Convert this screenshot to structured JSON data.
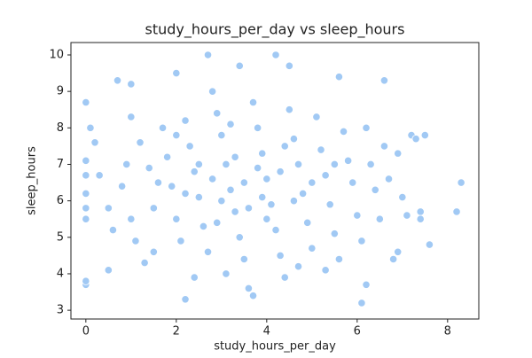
{
  "chart_data": {
    "type": "scatter",
    "title": "study_hours_per_day vs sleep_hours",
    "x_label": "study_hours_per_day",
    "y_label": "sleep_hours",
    "color": "#a1c9f4",
    "xlim": [
      -0.33,
      8.69
    ],
    "ylim": [
      2.76,
      10.34
    ],
    "xticks": [
      0,
      2,
      4,
      6,
      8
    ],
    "yticks": [
      3,
      4,
      5,
      6,
      7,
      8,
      9,
      10
    ],
    "x": [
      0,
      0,
      0,
      0.5,
      0.7,
      2.7,
      4.2,
      8.3,
      8.2,
      7.6,
      6.1,
      6.2,
      2.2,
      7.5,
      7.2,
      7.3,
      6.6,
      5.6,
      2.0,
      3.4,
      1.0,
      4.5,
      6.8,
      6.9,
      7.4,
      7.4,
      7.1,
      0.2,
      0.1,
      0,
      0,
      0,
      0,
      0,
      0.5,
      0.6,
      1.0,
      1.2,
      1.4,
      1.5,
      1.1,
      1.3,
      1.7,
      1.8,
      1.9,
      2.0,
      2.1,
      2.2,
      2.3,
      2.4,
      2.5,
      2.6,
      2.7,
      2.8,
      2.9,
      3.0,
      3.1,
      3.2,
      3.3,
      3.4,
      3.5,
      3.6,
      3.7,
      3.8,
      3.9,
      4.0,
      4.1,
      4.2,
      4.3,
      4.4,
      4.5,
      4.6,
      4.7,
      4.8,
      4.9,
      5.0,
      5.1,
      5.2,
      5.3,
      5.4,
      5.5,
      5.6,
      5.7,
      5.8,
      5.9,
      6.0,
      6.1,
      6.2,
      6.3,
      6.4,
      6.5,
      6.6,
      6.7,
      6.9,
      7.0,
      3.0,
      3.5,
      3.8,
      2.8,
      4.3,
      3.3,
      2.5,
      4.0,
      3.6,
      2.2,
      4.6,
      3.9,
      2.9,
      4.4,
      3.2,
      1.6,
      0.8,
      0.9,
      0.3,
      1.0,
      5.0,
      5.5,
      2.0,
      1.5,
      4.7,
      3.1,
      2.4,
      5.3,
      3.7
    ],
    "y": [
      3.7,
      3.8,
      8.7,
      4.1,
      9.3,
      10.0,
      10.0,
      6.5,
      5.7,
      4.8,
      3.2,
      3.7,
      3.3,
      7.8,
      7.8,
      7.7,
      9.3,
      9.4,
      9.5,
      9.7,
      9.2,
      9.7,
      4.4,
      4.6,
      5.7,
      5.5,
      5.6,
      7.6,
      8.0,
      7.1,
      6.7,
      6.2,
      5.8,
      5.5,
      5.8,
      5.2,
      8.3,
      7.6,
      6.9,
      5.8,
      4.9,
      4.3,
      8.0,
      7.2,
      6.4,
      5.5,
      4.9,
      8.2,
      7.5,
      6.8,
      6.1,
      5.3,
      4.6,
      9.0,
      8.4,
      7.8,
      7.0,
      6.3,
      5.7,
      5.0,
      4.4,
      3.6,
      8.7,
      8.0,
      7.3,
      6.6,
      5.9,
      5.2,
      4.5,
      3.9,
      8.5,
      7.7,
      7.0,
      6.2,
      5.4,
      4.7,
      8.3,
      7.4,
      6.7,
      5.9,
      5.1,
      4.4,
      7.9,
      7.1,
      6.5,
      5.6,
      4.9,
      8.0,
      7.0,
      6.3,
      5.5,
      7.5,
      6.6,
      7.3,
      6.1,
      6.0,
      6.5,
      6.9,
      6.6,
      6.8,
      7.2,
      7.0,
      5.5,
      5.8,
      6.2,
      6.0,
      6.1,
      5.4,
      7.5,
      8.1,
      6.5,
      6.4,
      7.0,
      6.7,
      5.5,
      6.5,
      7.0,
      7.8,
      4.6,
      4.2,
      4.0,
      3.9,
      4.1,
      3.4
    ]
  }
}
